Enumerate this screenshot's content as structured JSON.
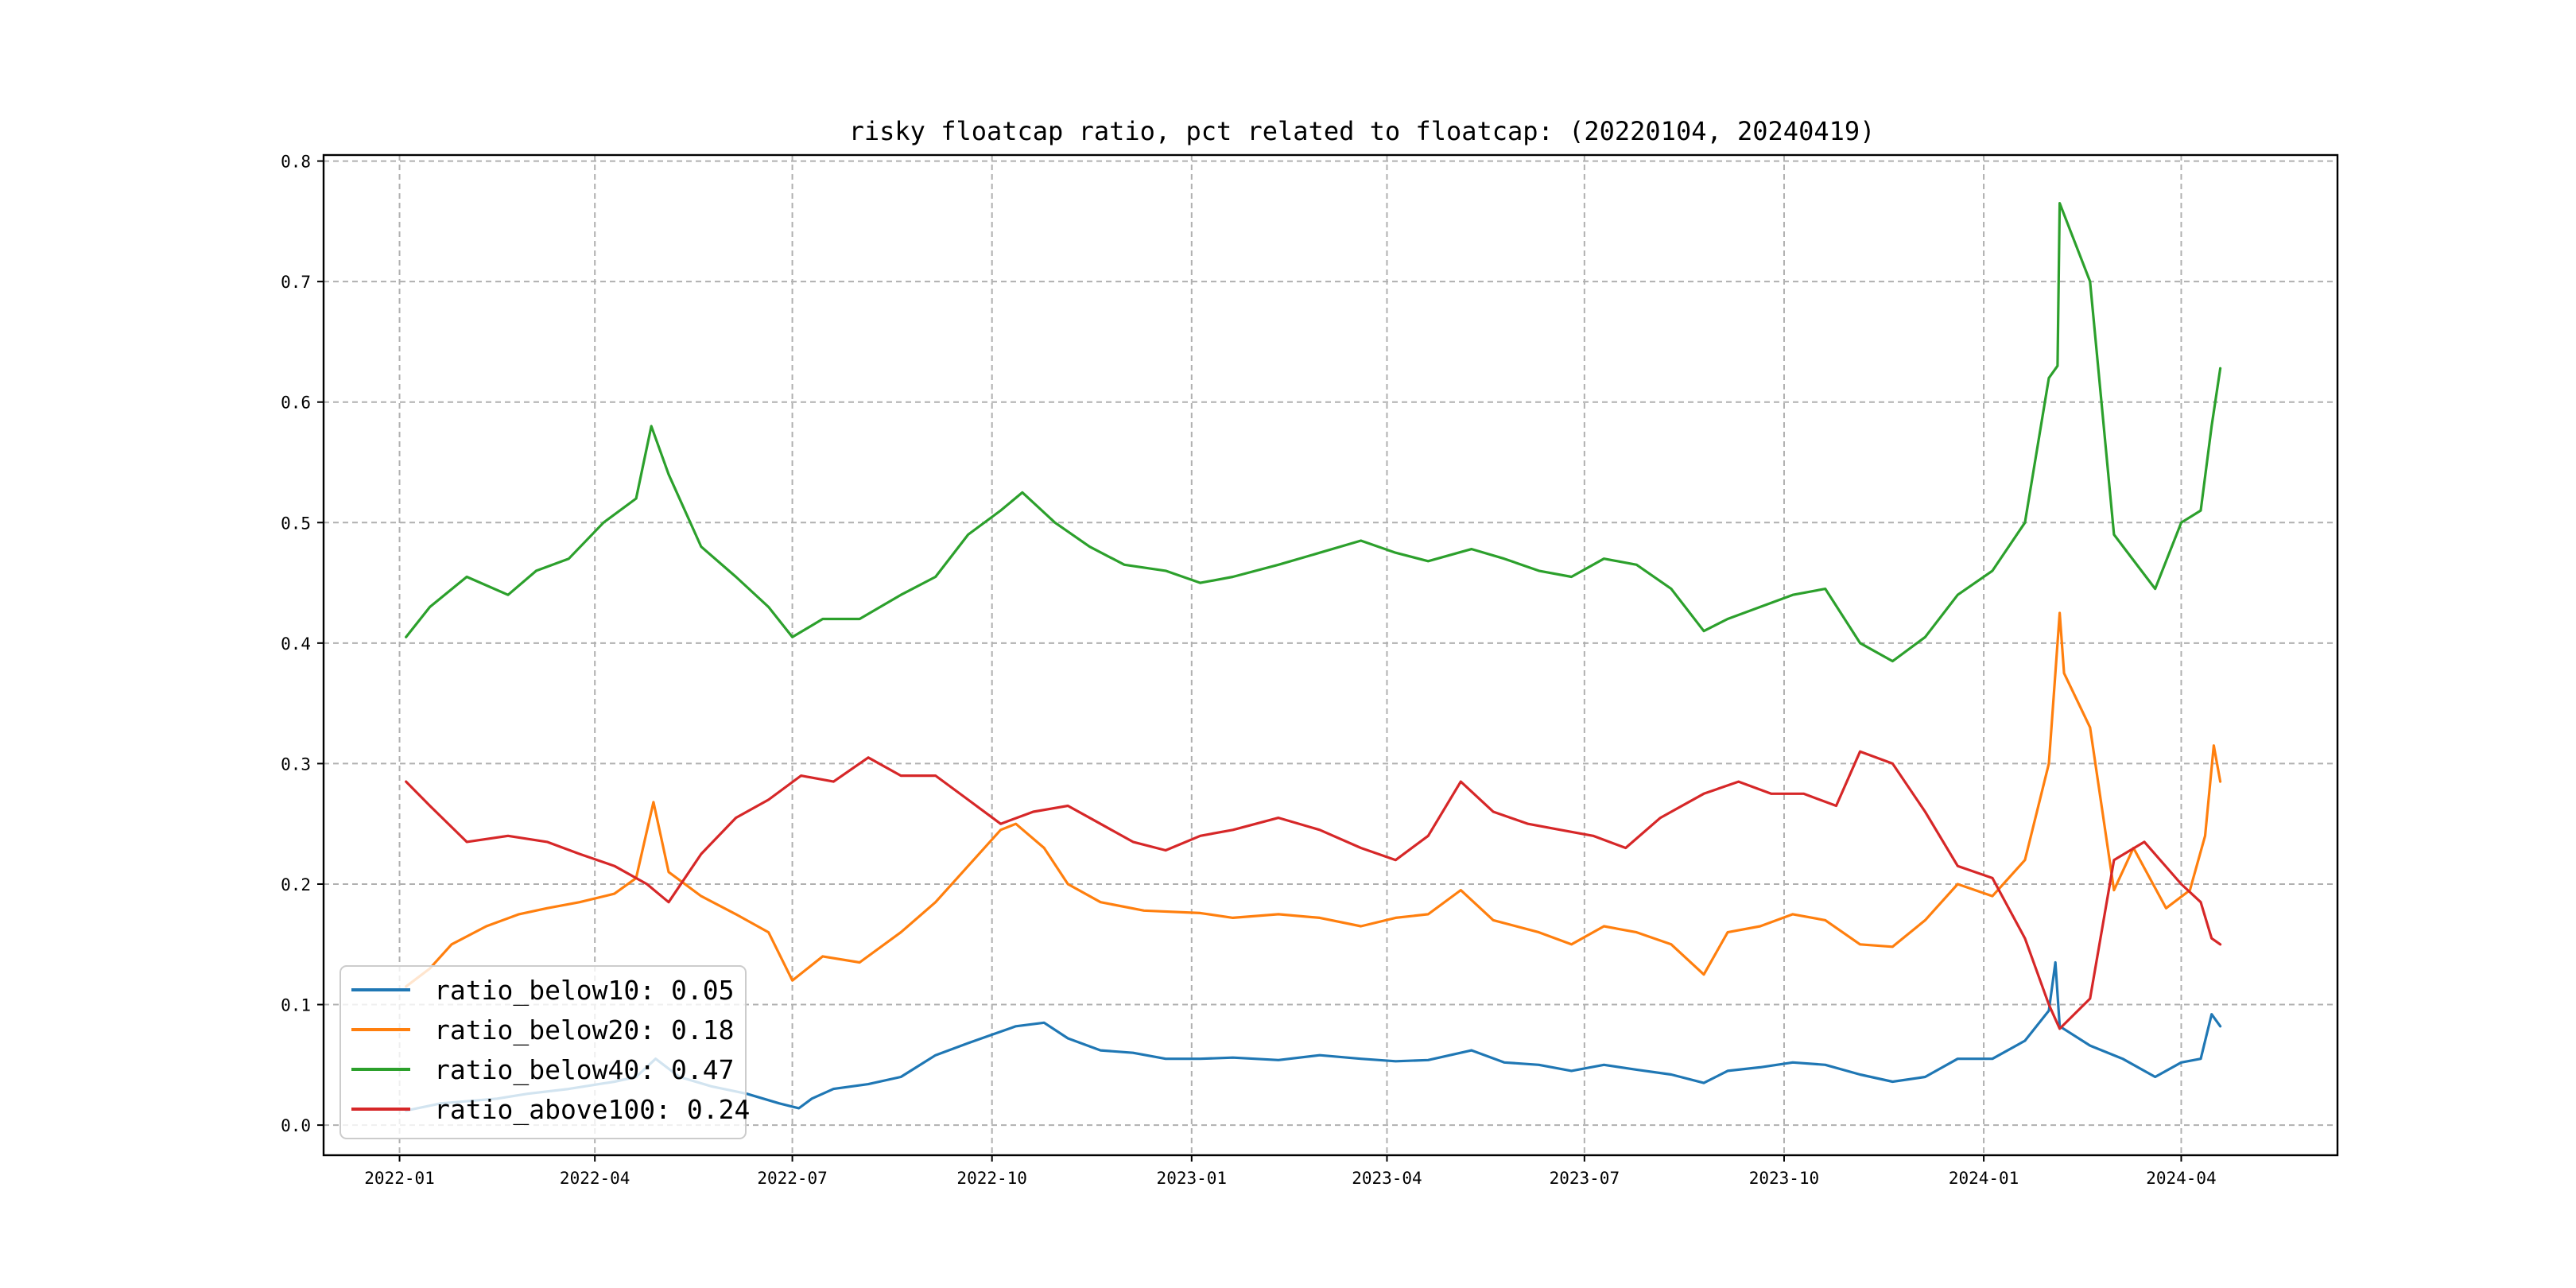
{
  "chart_data": {
    "type": "line",
    "title": "risky floatcap ratio, pct related to floatcap: (20220104, 20240419)",
    "xlabel": "",
    "ylabel": "",
    "xlim": [
      "2021-11-27",
      "2024-06-12"
    ],
    "ylim": [
      -0.025,
      0.805
    ],
    "x_ticks": [
      "2022-01",
      "2022-04",
      "2022-07",
      "2022-10",
      "2023-01",
      "2023-04",
      "2023-07",
      "2023-10",
      "2024-01",
      "2024-04"
    ],
    "y_ticks": [
      "0.0",
      "0.1",
      "0.2",
      "0.3",
      "0.4",
      "0.5",
      "0.6",
      "0.7",
      "0.8"
    ],
    "grid": true,
    "legend": "lower-left",
    "series": [
      {
        "name": "ratio_below10: 0.05",
        "color": "#1f77b4",
        "points": [
          [
            "2022-01-04",
            0.012
          ],
          [
            "2022-01-20",
            0.018
          ],
          [
            "2022-02-15",
            0.022
          ],
          [
            "2022-03-01",
            0.026
          ],
          [
            "2022-03-20",
            0.03
          ],
          [
            "2022-04-10",
            0.036
          ],
          [
            "2022-04-20",
            0.04
          ],
          [
            "2022-04-29",
            0.055
          ],
          [
            "2022-05-10",
            0.04
          ],
          [
            "2022-05-25",
            0.032
          ],
          [
            "2022-06-10",
            0.026
          ],
          [
            "2022-06-25",
            0.018
          ],
          [
            "2022-07-04",
            0.014
          ],
          [
            "2022-07-10",
            0.022
          ],
          [
            "2022-07-20",
            0.03
          ],
          [
            "2022-08-05",
            0.034
          ],
          [
            "2022-08-20",
            0.04
          ],
          [
            "2022-09-05",
            0.058
          ],
          [
            "2022-09-20",
            0.068
          ],
          [
            "2022-10-01",
            0.075
          ],
          [
            "2022-10-12",
            0.082
          ],
          [
            "2022-10-25",
            0.085
          ],
          [
            "2022-11-05",
            0.072
          ],
          [
            "2022-11-20",
            0.062
          ],
          [
            "2022-12-05",
            0.06
          ],
          [
            "2022-12-20",
            0.055
          ],
          [
            "2023-01-05",
            0.055
          ],
          [
            "2023-01-20",
            0.056
          ],
          [
            "2023-02-10",
            0.054
          ],
          [
            "2023-03-01",
            0.058
          ],
          [
            "2023-03-20",
            0.055
          ],
          [
            "2023-04-05",
            0.053
          ],
          [
            "2023-04-20",
            0.054
          ],
          [
            "2023-05-10",
            0.062
          ],
          [
            "2023-05-25",
            0.052
          ],
          [
            "2023-06-10",
            0.05
          ],
          [
            "2023-06-25",
            0.045
          ],
          [
            "2023-07-10",
            0.05
          ],
          [
            "2023-07-25",
            0.046
          ],
          [
            "2023-08-10",
            0.042
          ],
          [
            "2023-08-25",
            0.035
          ],
          [
            "2023-09-05",
            0.045
          ],
          [
            "2023-09-20",
            0.048
          ],
          [
            "2023-10-05",
            0.052
          ],
          [
            "2023-10-20",
            0.05
          ],
          [
            "2023-11-05",
            0.042
          ],
          [
            "2023-11-20",
            0.036
          ],
          [
            "2023-12-05",
            0.04
          ],
          [
            "2023-12-20",
            0.055
          ],
          [
            "2024-01-05",
            0.055
          ],
          [
            "2024-01-20",
            0.07
          ],
          [
            "2024-01-31",
            0.095
          ],
          [
            "2024-02-03",
            0.135
          ],
          [
            "2024-02-05",
            0.082
          ],
          [
            "2024-02-19",
            0.066
          ],
          [
            "2024-03-05",
            0.055
          ],
          [
            "2024-03-20",
            0.04
          ],
          [
            "2024-04-01",
            0.052
          ],
          [
            "2024-04-10",
            0.055
          ],
          [
            "2024-04-15",
            0.092
          ],
          [
            "2024-04-19",
            0.082
          ]
        ]
      },
      {
        "name": "ratio_below20: 0.18",
        "color": "#ff7f0e",
        "points": [
          [
            "2022-01-04",
            0.115
          ],
          [
            "2022-01-15",
            0.13
          ],
          [
            "2022-01-25",
            0.15
          ],
          [
            "2022-02-10",
            0.165
          ],
          [
            "2022-02-25",
            0.175
          ],
          [
            "2022-03-10",
            0.18
          ],
          [
            "2022-03-25",
            0.185
          ],
          [
            "2022-04-10",
            0.192
          ],
          [
            "2022-04-20",
            0.205
          ],
          [
            "2022-04-28",
            0.268
          ],
          [
            "2022-05-05",
            0.21
          ],
          [
            "2022-05-20",
            0.19
          ],
          [
            "2022-06-05",
            0.175
          ],
          [
            "2022-06-20",
            0.16
          ],
          [
            "2022-07-01",
            0.12
          ],
          [
            "2022-07-15",
            0.14
          ],
          [
            "2022-08-01",
            0.135
          ],
          [
            "2022-08-20",
            0.16
          ],
          [
            "2022-09-05",
            0.185
          ],
          [
            "2022-09-20",
            0.215
          ],
          [
            "2022-10-05",
            0.245
          ],
          [
            "2022-10-12",
            0.25
          ],
          [
            "2022-10-25",
            0.23
          ],
          [
            "2022-11-05",
            0.2
          ],
          [
            "2022-11-20",
            0.185
          ],
          [
            "2022-12-10",
            0.178
          ],
          [
            "2023-01-05",
            0.176
          ],
          [
            "2023-01-20",
            0.172
          ],
          [
            "2023-02-10",
            0.175
          ],
          [
            "2023-03-01",
            0.172
          ],
          [
            "2023-03-20",
            0.165
          ],
          [
            "2023-04-05",
            0.172
          ],
          [
            "2023-04-20",
            0.175
          ],
          [
            "2023-05-05",
            0.195
          ],
          [
            "2023-05-20",
            0.17
          ],
          [
            "2023-06-10",
            0.16
          ],
          [
            "2023-06-25",
            0.15
          ],
          [
            "2023-07-10",
            0.165
          ],
          [
            "2023-07-25",
            0.16
          ],
          [
            "2023-08-10",
            0.15
          ],
          [
            "2023-08-25",
            0.125
          ],
          [
            "2023-09-05",
            0.16
          ],
          [
            "2023-09-20",
            0.165
          ],
          [
            "2023-10-05",
            0.175
          ],
          [
            "2023-10-20",
            0.17
          ],
          [
            "2023-11-05",
            0.15
          ],
          [
            "2023-11-20",
            0.148
          ],
          [
            "2023-12-05",
            0.17
          ],
          [
            "2023-12-20",
            0.2
          ],
          [
            "2024-01-05",
            0.19
          ],
          [
            "2024-01-20",
            0.22
          ],
          [
            "2024-01-31",
            0.3
          ],
          [
            "2024-02-05",
            0.425
          ],
          [
            "2024-02-07",
            0.375
          ],
          [
            "2024-02-19",
            0.33
          ],
          [
            "2024-03-01",
            0.195
          ],
          [
            "2024-03-10",
            0.23
          ],
          [
            "2024-03-25",
            0.18
          ],
          [
            "2024-04-05",
            0.195
          ],
          [
            "2024-04-12",
            0.24
          ],
          [
            "2024-04-16",
            0.315
          ],
          [
            "2024-04-19",
            0.285
          ]
        ]
      },
      {
        "name": "ratio_below40: 0.47",
        "color": "#2ca02c",
        "points": [
          [
            "2022-01-04",
            0.405
          ],
          [
            "2022-01-15",
            0.43
          ],
          [
            "2022-02-01",
            0.455
          ],
          [
            "2022-02-20",
            0.44
          ],
          [
            "2022-03-05",
            0.46
          ],
          [
            "2022-03-20",
            0.47
          ],
          [
            "2022-04-05",
            0.5
          ],
          [
            "2022-04-20",
            0.52
          ],
          [
            "2022-04-27",
            0.58
          ],
          [
            "2022-05-05",
            0.54
          ],
          [
            "2022-05-20",
            0.48
          ],
          [
            "2022-06-05",
            0.455
          ],
          [
            "2022-06-20",
            0.43
          ],
          [
            "2022-07-01",
            0.405
          ],
          [
            "2022-07-15",
            0.42
          ],
          [
            "2022-08-01",
            0.42
          ],
          [
            "2022-08-20",
            0.44
          ],
          [
            "2022-09-05",
            0.455
          ],
          [
            "2022-09-20",
            0.49
          ],
          [
            "2022-10-05",
            0.51
          ],
          [
            "2022-10-15",
            0.525
          ],
          [
            "2022-10-30",
            0.5
          ],
          [
            "2022-11-15",
            0.48
          ],
          [
            "2022-12-01",
            0.465
          ],
          [
            "2022-12-20",
            0.46
          ],
          [
            "2023-01-05",
            0.45
          ],
          [
            "2023-01-20",
            0.455
          ],
          [
            "2023-02-10",
            0.465
          ],
          [
            "2023-03-01",
            0.475
          ],
          [
            "2023-03-20",
            0.485
          ],
          [
            "2023-04-05",
            0.475
          ],
          [
            "2023-04-20",
            0.468
          ],
          [
            "2023-05-10",
            0.478
          ],
          [
            "2023-05-25",
            0.47
          ],
          [
            "2023-06-10",
            0.46
          ],
          [
            "2023-06-25",
            0.455
          ],
          [
            "2023-07-10",
            0.47
          ],
          [
            "2023-07-25",
            0.465
          ],
          [
            "2023-08-10",
            0.445
          ],
          [
            "2023-08-25",
            0.41
          ],
          [
            "2023-09-05",
            0.42
          ],
          [
            "2023-09-20",
            0.43
          ],
          [
            "2023-10-05",
            0.44
          ],
          [
            "2023-10-20",
            0.445
          ],
          [
            "2023-11-05",
            0.4
          ],
          [
            "2023-11-20",
            0.385
          ],
          [
            "2023-12-05",
            0.405
          ],
          [
            "2023-12-20",
            0.44
          ],
          [
            "2024-01-05",
            0.46
          ],
          [
            "2024-01-20",
            0.5
          ],
          [
            "2024-01-31",
            0.62
          ],
          [
            "2024-02-04",
            0.63
          ],
          [
            "2024-02-05",
            0.765
          ],
          [
            "2024-02-19",
            0.7
          ],
          [
            "2024-03-01",
            0.49
          ],
          [
            "2024-03-20",
            0.445
          ],
          [
            "2024-04-01",
            0.5
          ],
          [
            "2024-04-10",
            0.51
          ],
          [
            "2024-04-15",
            0.58
          ],
          [
            "2024-04-19",
            0.628
          ]
        ]
      },
      {
        "name": "ratio_above100: 0.24",
        "color": "#d62728",
        "points": [
          [
            "2022-01-04",
            0.285
          ],
          [
            "2022-01-15",
            0.265
          ],
          [
            "2022-02-01",
            0.235
          ],
          [
            "2022-02-20",
            0.24
          ],
          [
            "2022-03-10",
            0.235
          ],
          [
            "2022-03-25",
            0.225
          ],
          [
            "2022-04-10",
            0.215
          ],
          [
            "2022-04-25",
            0.2
          ],
          [
            "2022-05-05",
            0.185
          ],
          [
            "2022-05-20",
            0.225
          ],
          [
            "2022-06-05",
            0.255
          ],
          [
            "2022-06-20",
            0.27
          ],
          [
            "2022-07-05",
            0.29
          ],
          [
            "2022-07-20",
            0.285
          ],
          [
            "2022-08-05",
            0.305
          ],
          [
            "2022-08-20",
            0.29
          ],
          [
            "2022-09-05",
            0.29
          ],
          [
            "2022-09-20",
            0.27
          ],
          [
            "2022-10-05",
            0.25
          ],
          [
            "2022-10-20",
            0.26
          ],
          [
            "2022-11-05",
            0.265
          ],
          [
            "2022-11-20",
            0.25
          ],
          [
            "2022-12-05",
            0.235
          ],
          [
            "2022-12-20",
            0.228
          ],
          [
            "2023-01-05",
            0.24
          ],
          [
            "2023-01-20",
            0.245
          ],
          [
            "2023-02-10",
            0.255
          ],
          [
            "2023-03-01",
            0.245
          ],
          [
            "2023-03-20",
            0.23
          ],
          [
            "2023-04-05",
            0.22
          ],
          [
            "2023-04-20",
            0.24
          ],
          [
            "2023-05-05",
            0.285
          ],
          [
            "2023-05-20",
            0.26
          ],
          [
            "2023-06-05",
            0.25
          ],
          [
            "2023-06-20",
            0.245
          ],
          [
            "2023-07-05",
            0.24
          ],
          [
            "2023-07-20",
            0.23
          ],
          [
            "2023-08-05",
            0.255
          ],
          [
            "2023-08-25",
            0.275
          ],
          [
            "2023-09-10",
            0.285
          ],
          [
            "2023-09-25",
            0.275
          ],
          [
            "2023-10-10",
            0.275
          ],
          [
            "2023-10-25",
            0.265
          ],
          [
            "2023-11-05",
            0.31
          ],
          [
            "2023-11-20",
            0.3
          ],
          [
            "2023-12-05",
            0.26
          ],
          [
            "2023-12-20",
            0.215
          ],
          [
            "2024-01-05",
            0.205
          ],
          [
            "2024-01-20",
            0.155
          ],
          [
            "2024-01-31",
            0.1
          ],
          [
            "2024-02-05",
            0.08
          ],
          [
            "2024-02-19",
            0.105
          ],
          [
            "2024-03-01",
            0.22
          ],
          [
            "2024-03-15",
            0.235
          ],
          [
            "2024-04-01",
            0.2
          ],
          [
            "2024-04-10",
            0.185
          ],
          [
            "2024-04-15",
            0.155
          ],
          [
            "2024-04-19",
            0.15
          ]
        ]
      }
    ]
  }
}
